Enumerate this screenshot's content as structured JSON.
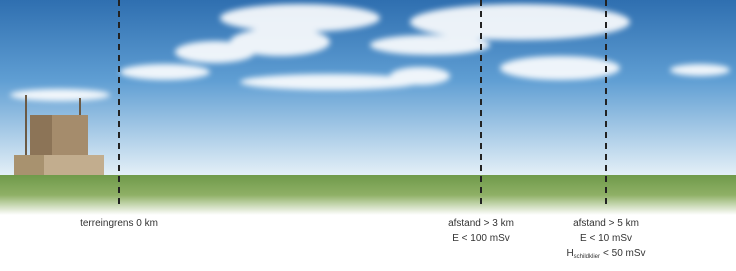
{
  "markers": [
    {
      "lines": [
        "terreingrens 0 km"
      ]
    },
    {
      "lines": [
        "afstand > 3 km",
        "E < 100 mSv"
      ]
    },
    {
      "lines": [
        "afstand > 5 km",
        "E < 10 mSv"
      ],
      "dose": {
        "symbol": "H",
        "subscript": "schildklier",
        "limit": "< 50 mSv"
      }
    }
  ]
}
